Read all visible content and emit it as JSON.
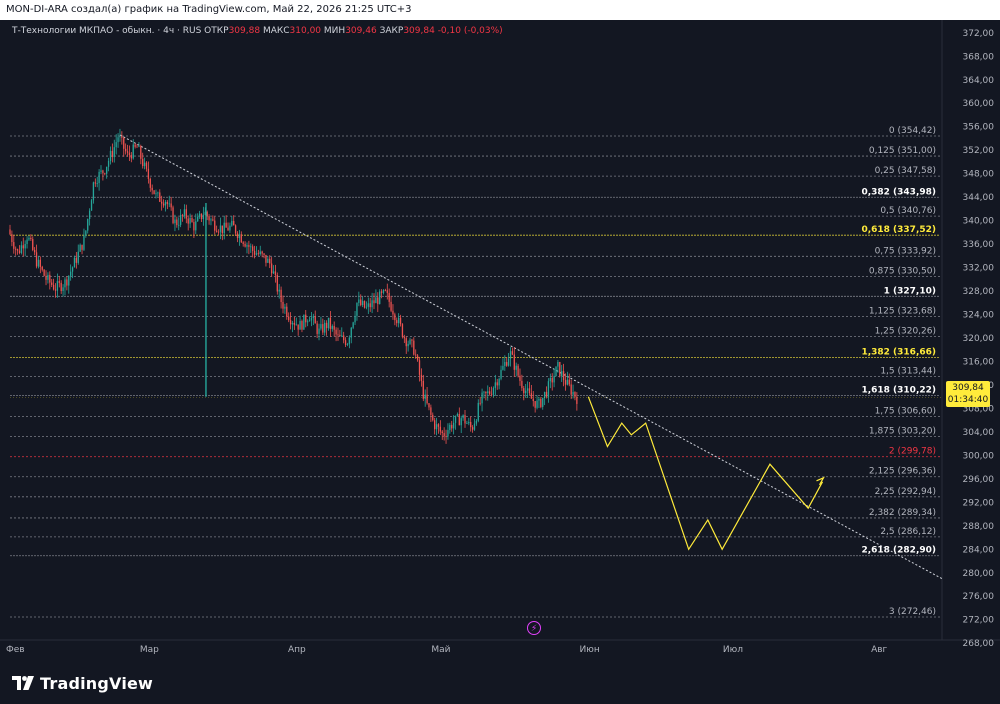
{
  "header": {
    "title": "MON-DI-ARA создал(а) график на TradingView.com, Май 22, 2026 21:25 UTC+3"
  },
  "legend": {
    "symbol": "Т-Технологии МКПАО - обыкн. · 4ч · RUS",
    "open_label": "ОТКР",
    "open": "309,88",
    "high_label": "МАКС",
    "high": "310,00",
    "low_label": "МИН",
    "low": "309,46",
    "close_label": "ЗАКР",
    "close": "309,84",
    "change": "-0,10 (-0,03%)"
  },
  "price_badge": {
    "price": "309,84",
    "countdown": "01:34:40"
  },
  "brand": {
    "name": "TradingView",
    "logo": "tradingview-logo-icon"
  },
  "flash_icon": "lightning-icon",
  "colors": {
    "background": "#131722",
    "up": "#26a69a",
    "down": "#ef5350",
    "fib_line": "#d1d4dc",
    "fib_highlight": "#ffeb3b",
    "fib_2": "#f23645",
    "projection": "#ffeb3b",
    "trendline": "#d1d4dc"
  },
  "chart_data": {
    "type": "candlestick",
    "timeframe": "4ч",
    "y_axis": {
      "ticks": [
        "372,00",
        "368,00",
        "364,00",
        "360,00",
        "356,00",
        "352,00",
        "348,00",
        "344,00",
        "340,00",
        "336,00",
        "332,00",
        "328,00",
        "324,00",
        "320,00",
        "316,00",
        "312,00",
        "308,00",
        "304,00",
        "300,00",
        "296,00",
        "292,00",
        "288,00",
        "284,00",
        "280,00",
        "276,00",
        "272,00",
        "268,00"
      ],
      "range": [
        266.5,
        373.5
      ]
    },
    "x_axis": {
      "labels": [
        "Фев",
        "Мар",
        "Апр",
        "Май",
        "Июн",
        "Июл",
        "Авг"
      ],
      "range": [
        "2026-02-01",
        "2026-08-15"
      ]
    },
    "fibonacci": [
      {
        "level": "0",
        "value": "354,42",
        "style": "normal"
      },
      {
        "level": "0,125",
        "value": "351,00",
        "style": "normal"
      },
      {
        "level": "0,25",
        "value": "347,58",
        "style": "normal"
      },
      {
        "level": "0,382",
        "value": "343,98",
        "style": "bold"
      },
      {
        "level": "0,5",
        "value": "340,76",
        "style": "normal"
      },
      {
        "level": "0,618",
        "value": "337,52",
        "style": "highlight"
      },
      {
        "level": "0,75",
        "value": "333,92",
        "style": "normal"
      },
      {
        "level": "0,875",
        "value": "330,50",
        "style": "normal"
      },
      {
        "level": "1",
        "value": "327,10",
        "style": "bold"
      },
      {
        "level": "1,125",
        "value": "323,68",
        "style": "normal"
      },
      {
        "level": "1,25",
        "value": "320,26",
        "style": "normal"
      },
      {
        "level": "1,382",
        "value": "316,66",
        "style": "highlight"
      },
      {
        "level": "1,5",
        "value": "313,44",
        "style": "normal"
      },
      {
        "level": "1,618",
        "value": "310,22",
        "style": "bold"
      },
      {
        "level": "1,75",
        "value": "306,60",
        "style": "normal"
      },
      {
        "level": "1,875",
        "value": "303,20",
        "style": "normal"
      },
      {
        "level": "2",
        "value": "299,78",
        "style": "red"
      },
      {
        "level": "2,125",
        "value": "296,36",
        "style": "normal"
      },
      {
        "level": "2,25",
        "value": "292,94",
        "style": "normal"
      },
      {
        "level": "2,382",
        "value": "289,34",
        "style": "normal"
      },
      {
        "level": "2,5",
        "value": "286,12",
        "style": "normal"
      },
      {
        "level": "2,618",
        "value": "282,90",
        "style": "bold"
      },
      {
        "level": "3",
        "value": "272,46",
        "style": "normal"
      }
    ],
    "price_path": [
      [
        "2026-02-01",
        338.5
      ],
      [
        "2026-02-03",
        334.5
      ],
      [
        "2026-02-05",
        337.5
      ],
      [
        "2026-02-07",
        333.0
      ],
      [
        "2026-02-09",
        330.0
      ],
      [
        "2026-02-11",
        328.5
      ],
      [
        "2026-02-13",
        329.5
      ],
      [
        "2026-02-15",
        333.0
      ],
      [
        "2026-02-17",
        337.0
      ],
      [
        "2026-02-19",
        347.0
      ],
      [
        "2026-02-21",
        348.5
      ],
      [
        "2026-02-23",
        352.0
      ],
      [
        "2026-02-24",
        354.4
      ],
      [
        "2026-02-26",
        351.0
      ],
      [
        "2026-02-28",
        352.5
      ],
      [
        "2026-03-02",
        348.0
      ],
      [
        "2026-03-04",
        344.0
      ],
      [
        "2026-03-06",
        343.5
      ],
      [
        "2026-03-08",
        339.5
      ],
      [
        "2026-03-10",
        341.0
      ],
      [
        "2026-03-12",
        339.0
      ],
      [
        "2026-03-14",
        341.5
      ],
      [
        "2026-03-16",
        339.5
      ],
      [
        "2026-03-18",
        338.5
      ],
      [
        "2026-03-20",
        339.0
      ],
      [
        "2026-03-22",
        337.0
      ],
      [
        "2026-03-24",
        335.0
      ],
      [
        "2026-03-26",
        334.0
      ],
      [
        "2026-03-28",
        332.5
      ],
      [
        "2026-03-30",
        326.5
      ],
      [
        "2026-04-01",
        323.5
      ],
      [
        "2026-04-03",
        322.0
      ],
      [
        "2026-04-05",
        324.0
      ],
      [
        "2026-04-07",
        321.0
      ],
      [
        "2026-04-09",
        322.5
      ],
      [
        "2026-04-11",
        320.0
      ],
      [
        "2026-04-13",
        319.5
      ],
      [
        "2026-04-15",
        326.0
      ],
      [
        "2026-04-17",
        325.0
      ],
      [
        "2026-04-19",
        326.5
      ],
      [
        "2026-04-21",
        327.5
      ],
      [
        "2026-04-23",
        324.0
      ],
      [
        "2026-04-25",
        320.0
      ],
      [
        "2026-04-27",
        318.0
      ],
      [
        "2026-04-29",
        310.0
      ],
      [
        "2026-05-01",
        305.5
      ],
      [
        "2026-05-03",
        303.5
      ],
      [
        "2026-05-05",
        305.5
      ],
      [
        "2026-05-07",
        306.5
      ],
      [
        "2026-05-09",
        304.5
      ],
      [
        "2026-05-11",
        309.5
      ],
      [
        "2026-05-13",
        311.0
      ],
      [
        "2026-05-15",
        314.0
      ],
      [
        "2026-05-17",
        317.5
      ],
      [
        "2026-05-19",
        313.0
      ],
      [
        "2026-05-21",
        310.0
      ],
      [
        "2026-05-23",
        308.5
      ],
      [
        "2026-05-25",
        311.5
      ],
      [
        "2026-05-27",
        315.0
      ],
      [
        "2026-05-29",
        312.0
      ],
      [
        "2026-05-31",
        309.84
      ]
    ],
    "spike_low": {
      "date": "2026-03-14",
      "low": 310.0
    },
    "trendline": {
      "from": [
        "2026-02-24",
        354.6
      ],
      "to": [
        "2026-08-15",
        279.0
      ]
    },
    "projection": [
      [
        "2026-06-02",
        310.0
      ],
      [
        "2026-06-06",
        301.5
      ],
      [
        "2026-06-09",
        305.5
      ],
      [
        "2026-06-11",
        303.5
      ],
      [
        "2026-06-14",
        305.5
      ],
      [
        "2026-06-23",
        284.0
      ],
      [
        "2026-06-27",
        289.0
      ],
      [
        "2026-06-30",
        284.0
      ],
      [
        "2026-07-10",
        298.5
      ],
      [
        "2026-07-18",
        291.0
      ],
      [
        "2026-07-21",
        295.5
      ]
    ],
    "current_price": 309.84
  }
}
